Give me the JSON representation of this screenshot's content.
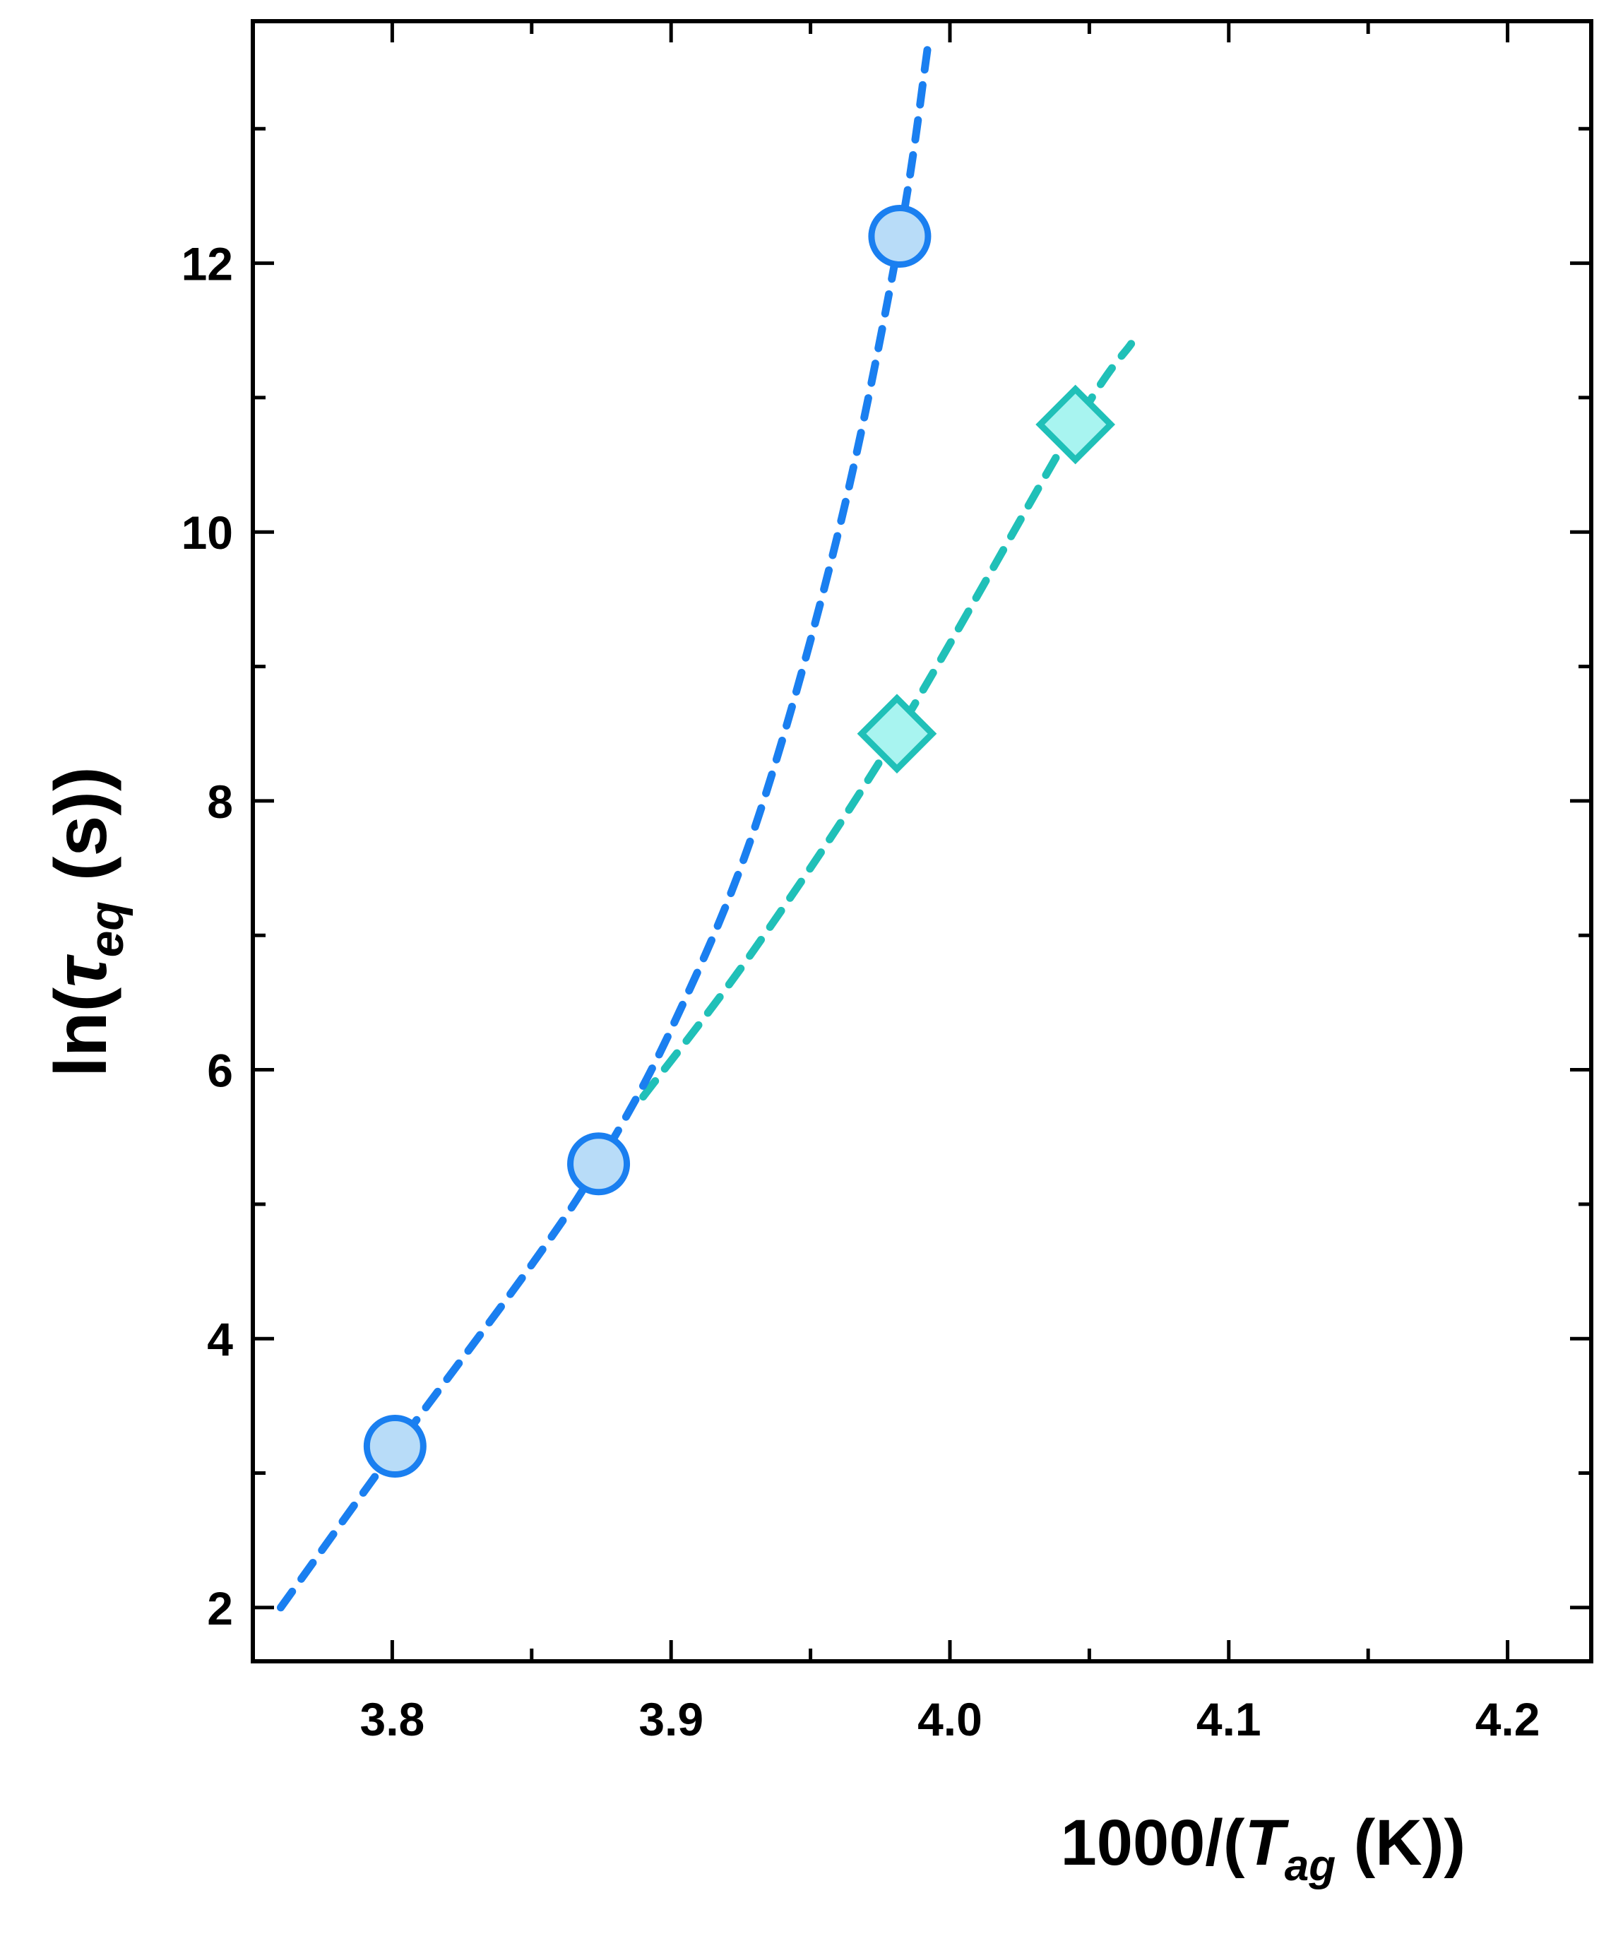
{
  "chart_data": {
    "type": "scatter",
    "title": "",
    "xlabel": {
      "prefix": "1000/(",
      "symbol": "T",
      "subscript": "ag",
      "suffix": " (K))"
    },
    "ylabel": {
      "prefix": "ln(",
      "symbol": "τ",
      "subscript": "eq",
      "suffix": " (s))"
    },
    "xlim": [
      3.75,
      4.23
    ],
    "ylim": [
      1.6,
      13.8
    ],
    "x_ticks": [
      3.8,
      3.9,
      4.0,
      4.1,
      4.2
    ],
    "x_tick_labels": [
      "3.8",
      "3.9",
      "4.0",
      "4.1",
      "4.2"
    ],
    "y_ticks": [
      2,
      4,
      6,
      8,
      10,
      12
    ],
    "y_tick_labels": [
      "2",
      "4",
      "6",
      "8",
      "10",
      "12"
    ],
    "series": [
      {
        "marker": "circle",
        "color": "#1a7ff0",
        "fill": "#b8dcf8",
        "points": [
          {
            "x": 3.801,
            "y": 3.2
          },
          {
            "x": 3.874,
            "y": 5.3
          },
          {
            "x": 3.982,
            "y": 12.2
          }
        ],
        "fit": [
          {
            "x": 3.76,
            "y": 2.0
          },
          {
            "x": 3.8,
            "y": 3.15
          },
          {
            "x": 3.85,
            "y": 4.55
          },
          {
            "x": 3.874,
            "y": 5.3
          },
          {
            "x": 3.9,
            "y": 6.3
          },
          {
            "x": 3.93,
            "y": 7.8
          },
          {
            "x": 3.96,
            "y": 10.0
          },
          {
            "x": 3.982,
            "y": 12.2
          },
          {
            "x": 3.992,
            "y": 13.6
          }
        ]
      },
      {
        "marker": "diamond",
        "color": "#20c0b8",
        "fill": "#a8f4f0",
        "points": [
          {
            "x": 3.981,
            "y": 8.5
          },
          {
            "x": 4.045,
            "y": 10.8
          }
        ],
        "fit": [
          {
            "x": 3.89,
            "y": 5.8
          },
          {
            "x": 3.93,
            "y": 6.9
          },
          {
            "x": 3.981,
            "y": 8.5
          },
          {
            "x": 4.045,
            "y": 10.8
          },
          {
            "x": 4.065,
            "y": 11.4
          }
        ]
      }
    ]
  }
}
